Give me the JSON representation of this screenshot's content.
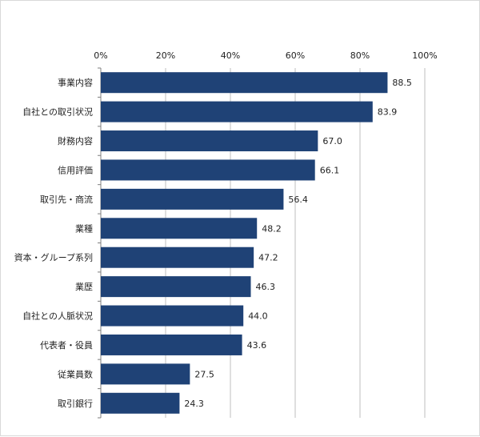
{
  "chart_data": {
    "type": "bar",
    "orientation": "horizontal",
    "categories": [
      "事業内容",
      "自社との取引状況",
      "財務内容",
      "信用評価",
      "取引先・商流",
      "業種",
      "資本・グループ系列",
      "業歴",
      "自社との人脈状況",
      "代表者・役員",
      "従業員数",
      "取引銀行"
    ],
    "values": [
      88.5,
      83.9,
      67.0,
      66.1,
      56.4,
      48.2,
      47.2,
      46.3,
      44.0,
      43.6,
      27.5,
      24.3
    ],
    "value_labels": [
      "88.5",
      "83.9",
      "67.0",
      "66.1",
      "56.4",
      "48.2",
      "47.2",
      "46.3",
      "44.0",
      "43.6",
      "27.5",
      "24.3"
    ],
    "xlim": [
      0,
      100
    ],
    "x_ticks": [
      "0%",
      "20%",
      "40%",
      "60%",
      "80%",
      "100%"
    ],
    "x_axis_position": "top",
    "grid": true,
    "legend": "none",
    "bar_color": "#1f4276",
    "title": "",
    "xlabel": "",
    "ylabel": ""
  }
}
